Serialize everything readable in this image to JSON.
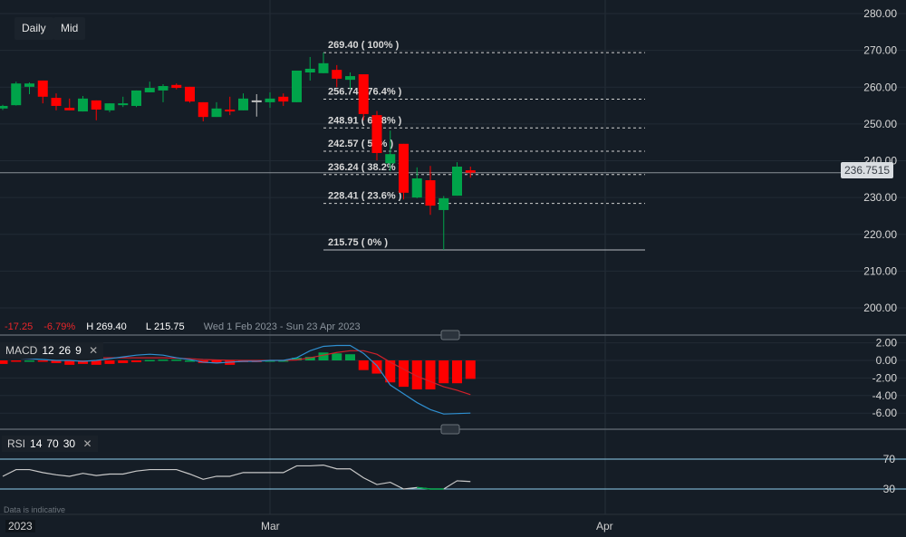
{
  "toolbar": {
    "interval": "Daily",
    "price_type": "Mid"
  },
  "stats": {
    "change": "-17.25",
    "change_pct": "-6.79%",
    "high_label": "H",
    "high": "269.40",
    "low_label": "L",
    "low": "215.75",
    "range": "Wed 1 Feb 2023 - Sun 23 Apr 2023"
  },
  "last_price": "236.7515",
  "note": "Data is indicative",
  "colors": {
    "background": "#151d26",
    "up": "#00a44a",
    "down": "#ff0000",
    "macd_line": "#2f8fd0",
    "signal_line": "#d0202a",
    "rsi_line": "#c8c8c8",
    "rsi_bands": "#8fcfee"
  },
  "chart_data": [
    {
      "type": "candlestick",
      "title": "",
      "y_ticks": [
        "280.00",
        "270.00",
        "260.00",
        "250.00",
        "240.00",
        "230.00",
        "220.00",
        "210.00",
        "200.00"
      ],
      "ylim": [
        200,
        280
      ],
      "x_ticks": [
        "2023",
        "Mar",
        "Apr"
      ],
      "grid": true,
      "ohlc": [
        [
          254.2,
          255.2,
          253.8,
          254.9
        ],
        [
          255.1,
          261.5,
          255.0,
          261.0
        ],
        [
          260.1,
          261.3,
          258.1,
          261.0
        ],
        [
          261.8,
          261.8,
          255.6,
          257.4
        ],
        [
          257.1,
          258.3,
          253.7,
          254.9
        ],
        [
          254.4,
          256.9,
          253.7,
          253.7
        ],
        [
          253.4,
          257.6,
          253.4,
          256.9
        ],
        [
          256.4,
          256.4,
          251.0,
          253.9
        ],
        [
          253.7,
          255.6,
          253.2,
          255.6
        ],
        [
          255.4,
          257.4,
          254.6,
          255.6
        ],
        [
          254.9,
          259.1,
          254.6,
          259.1
        ],
        [
          258.6,
          261.5,
          258.6,
          259.8
        ],
        [
          259.1,
          260.8,
          255.9,
          260.3
        ],
        [
          260.6,
          261.0,
          259.4,
          259.8
        ],
        [
          260.1,
          260.1,
          255.8,
          256.1
        ],
        [
          255.9,
          255.9,
          250.7,
          251.9
        ],
        [
          251.9,
          255.9,
          251.9,
          254.2
        ],
        [
          253.9,
          257.4,
          252.4,
          253.4
        ],
        [
          253.7,
          258.3,
          253.7,
          256.9
        ],
        [
          256.4,
          258.1,
          252.0,
          256.4
        ],
        [
          255.9,
          258.6,
          254.4,
          256.9
        ],
        [
          257.4,
          258.3,
          254.9,
          256.1
        ],
        [
          255.9,
          264.5,
          255.9,
          264.5
        ],
        [
          264.0,
          268.2,
          261.8,
          265.0
        ],
        [
          263.8,
          269.4,
          263.8,
          266.5
        ],
        [
          264.7,
          266.0,
          260.0,
          262.3
        ],
        [
          262.0,
          264.0,
          259.5,
          263.0
        ],
        [
          263.5,
          263.5,
          251.0,
          252.7
        ],
        [
          252.4,
          253.5,
          240.1,
          242.1
        ],
        [
          239.3,
          248.2,
          237.2,
          241.8
        ],
        [
          244.6,
          244.6,
          229.5,
          231.3
        ],
        [
          230.0,
          238.2,
          229.8,
          235.2
        ],
        [
          234.7,
          238.6,
          225.3,
          227.8
        ],
        [
          226.6,
          230.4,
          215.75,
          229.8
        ],
        [
          230.5,
          239.6,
          230.5,
          238.4
        ],
        [
          237.4,
          238.4,
          235.4,
          236.75
        ]
      ],
      "fibonacci": [
        {
          "label": "269.40 ( 100% )",
          "price": 269.4
        },
        {
          "label": "256.74 ( 76.4% )",
          "price": 256.74
        },
        {
          "label": "248.91 ( 61.8% )",
          "price": 248.91
        },
        {
          "label": "242.57 ( 50% )",
          "price": 242.57
        },
        {
          "label": "236.24 ( 38.2% )",
          "price": 236.24
        },
        {
          "label": "228.41 ( 23.6% )",
          "price": 228.41
        },
        {
          "label": "215.75 ( 0% )",
          "price": 215.75
        }
      ]
    },
    {
      "type": "macd",
      "label": "MACD",
      "params": [
        "12",
        "26",
        "9"
      ],
      "y_ticks": [
        "2.00",
        "0.00",
        "-2.00",
        "-4.00",
        "-6.00"
      ],
      "ylim": [
        -7,
        3
      ],
      "histogram": [
        -0.4,
        -0.1,
        0,
        -0.1,
        -0.3,
        -0.5,
        -0.4,
        -0.5,
        -0.4,
        -0.3,
        -0.2,
        0.05,
        0.1,
        0.1,
        0,
        -0.3,
        -0.3,
        -0.5,
        -0.2,
        -0.2,
        0,
        0,
        0.3,
        0.4,
        0.9,
        0.8,
        0.7,
        -1.1,
        -1.5,
        -2.5,
        -3.0,
        -3.3,
        -3.3,
        -2.6,
        -2.6,
        -2.1
      ],
      "macd": [
        0.4,
        0.3,
        0.2,
        0.1,
        0,
        0,
        -0.1,
        0,
        0.2,
        0.4,
        0.6,
        0.7,
        0.6,
        0.3,
        0.1,
        -0.2,
        -0.3,
        -0.2,
        -0.1,
        -0.1,
        0,
        0,
        0.3,
        1.1,
        1.6,
        1.7,
        1.7,
        0.8,
        -0.6,
        -2.8,
        -3.8,
        -4.8,
        -5.6,
        -6.1,
        -6.05,
        -6.0
      ],
      "signal": [
        0.8,
        0.6,
        0.5,
        0.4,
        0.35,
        0.3,
        0.3,
        0.3,
        0.3,
        0.3,
        0.3,
        0.3,
        0.3,
        0.25,
        0.2,
        0.1,
        0.05,
        0.02,
        0,
        0,
        0,
        0,
        0.05,
        0.3,
        0.6,
        0.9,
        1.1,
        1.1,
        0.7,
        -0.2,
        -1.0,
        -1.8,
        -2.4,
        -3.0,
        -3.4,
        -3.9
      ]
    },
    {
      "type": "rsi",
      "label": "RSI",
      "params": [
        "14",
        "70",
        "30"
      ],
      "y_ticks": [
        "70",
        "30"
      ],
      "values": [
        47,
        56,
        56,
        52,
        49,
        47,
        51,
        48,
        50,
        50,
        54,
        56,
        56,
        56,
        50,
        43,
        47,
        47,
        52,
        52,
        52,
        52,
        61,
        61,
        62,
        57,
        57,
        45,
        36,
        39,
        30,
        32,
        30,
        30,
        41,
        40
      ]
    }
  ]
}
